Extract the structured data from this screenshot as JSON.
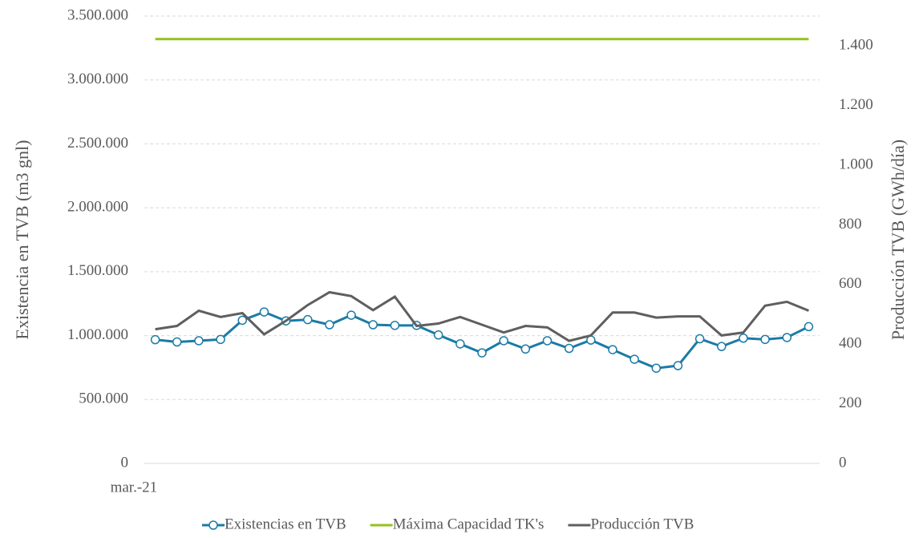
{
  "chart_data": {
    "type": "line",
    "y_label": "Existencia en TVB (m3 gnl)",
    "y2_label": "Producción TVB (GWh/día)",
    "categories": [
      "mar.-21",
      null,
      null,
      null,
      null,
      null,
      null,
      null,
      null,
      null,
      null,
      null,
      null,
      null,
      null,
      null,
      null,
      null,
      null,
      null,
      null,
      null,
      null,
      null,
      null,
      null,
      null,
      null,
      null,
      null,
      null
    ],
    "ylim": [
      0,
      3500000
    ],
    "yticks": [
      0,
      {
        "value": 500000,
        "label": "500.000"
      },
      {
        "value": 1000000,
        "label": "1.000.000"
      },
      {
        "value": 1500000,
        "label": "1.500.000"
      },
      {
        "value": 2000000,
        "label": "2.000.000"
      },
      {
        "value": 2500000,
        "label": "2.500.000"
      },
      {
        "value": 3000000,
        "label": "3.000.000"
      },
      {
        "value": 3500000,
        "label": "3.500.000"
      }
    ],
    "y2lim": [
      0,
      1500
    ],
    "y2ticks": [
      0,
      200,
      400,
      600,
      800,
      {
        "value": 1000,
        "label": "1.000"
      },
      {
        "value": 1200,
        "label": "1.200"
      },
      {
        "value": 1400,
        "label": "1.400"
      }
    ],
    "grid": true,
    "legend": "bottom",
    "series": [
      {
        "name": "Existencias en TVB",
        "color": "#1b7ba6",
        "marker": true,
        "values": [
          968000,
          950000,
          960000,
          970000,
          1120000,
          1185000,
          1115000,
          1125000,
          1085000,
          1160000,
          1085000,
          1080000,
          1080000,
          1005000,
          935000,
          865000,
          960000,
          895000,
          960000,
          900000,
          965000,
          890000,
          815000,
          745000,
          765000,
          975000,
          915000,
          980000,
          970000,
          985000,
          1070000
        ]
      },
      {
        "name": "Máxima Capacidad TK's",
        "color": "#95c11f",
        "marker": false,
        "values": [
          3320000,
          3320000,
          3320000,
          3320000,
          3320000,
          3320000,
          3320000,
          3320000,
          3320000,
          3320000,
          3320000,
          3320000,
          3320000,
          3320000,
          3320000,
          3320000,
          3320000,
          3320000,
          3320000,
          3320000,
          3320000,
          3320000,
          3320000,
          3320000,
          3320000,
          3320000,
          3320000,
          3320000,
          3320000,
          3320000,
          3320000
        ]
      },
      {
        "name": "Producción TVB",
        "color": "#5f5f5f",
        "marker": false,
        "axis": "y2",
        "values": [
          450,
          461,
          512,
          491,
          504,
          433,
          478,
          531,
          574,
          561,
          514,
          559,
          461,
          469,
          491,
          465,
          439,
          461,
          456,
          411,
          429,
          506,
          506,
          489,
          493,
          493,
          429,
          439,
          529,
          542,
          512
        ]
      }
    ]
  }
}
